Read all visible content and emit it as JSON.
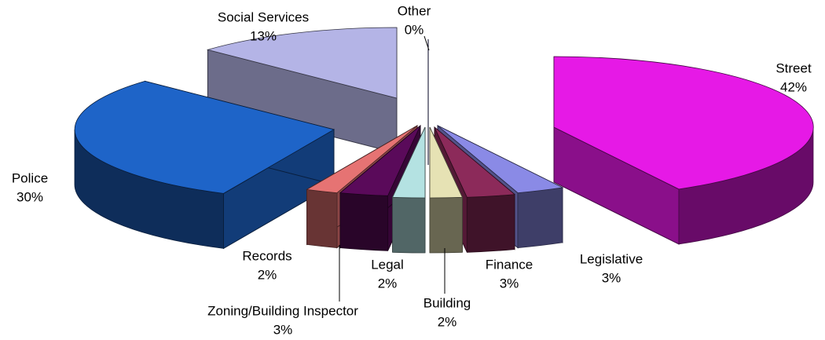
{
  "chart_data": {
    "type": "pie3d",
    "categories": [
      "Street",
      "Legislative",
      "Finance",
      "Building",
      "Legal",
      "Zoning/Building Inspector",
      "Records",
      "Police",
      "Social Services",
      "Other"
    ],
    "values": [
      42,
      3,
      3,
      2,
      2,
      3,
      2,
      30,
      13,
      0
    ],
    "value_labels": [
      "42%",
      "3%",
      "3%",
      "2%",
      "2%",
      "3%",
      "2%",
      "30%",
      "13%",
      "0%"
    ],
    "colors": [
      "#e619e6",
      "#8a8ae6",
      "#8c2a5a",
      "#e6e2b4",
      "#b4e2e2",
      "#5a0a5a",
      "#e67373",
      "#1e64c8",
      "#b4b4e6",
      "#0a0a6e"
    ]
  }
}
